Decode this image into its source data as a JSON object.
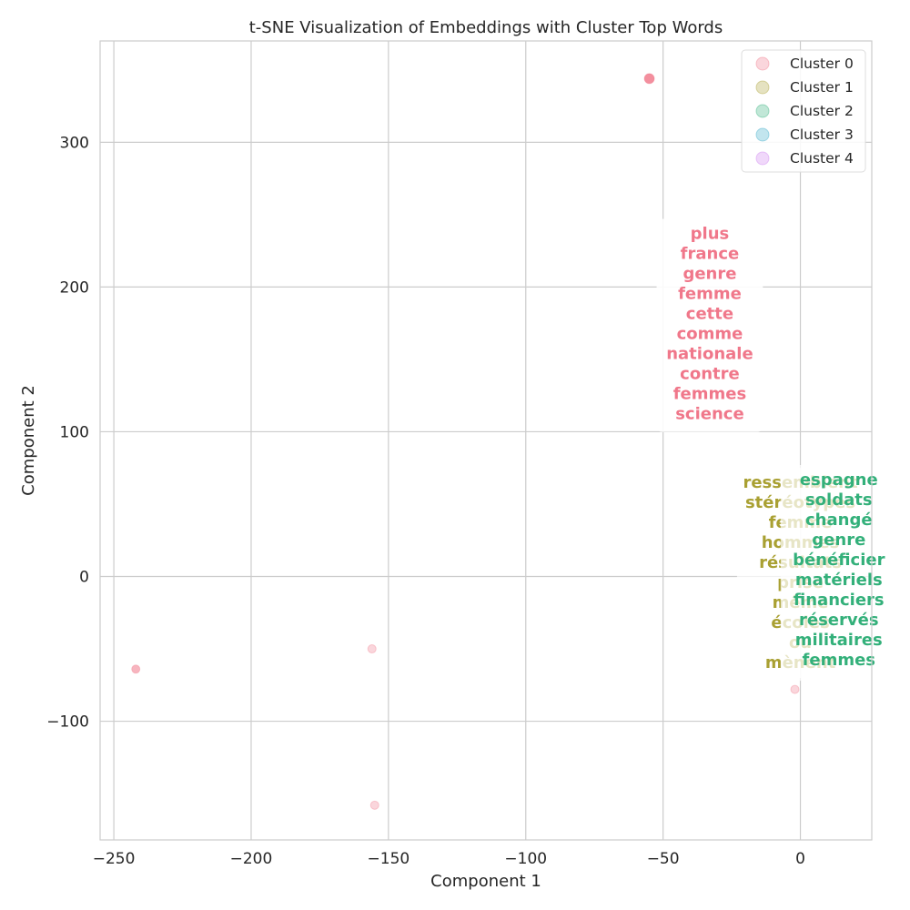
{
  "chart_data": {
    "type": "scatter",
    "title": "t-SNE Visualization of Embeddings with Cluster Top Words",
    "xlabel": "Component 1",
    "ylabel": "Component 2",
    "xlim": [
      -255,
      26
    ],
    "ylim": [
      -182,
      370
    ],
    "xticks": [
      -250,
      -200,
      -150,
      -100,
      -50,
      0
    ],
    "yticks": [
      -100,
      0,
      100,
      200,
      300
    ],
    "tick_labels_x": [
      "−250",
      "−200",
      "−150",
      "−100",
      "−50",
      "0"
    ],
    "tick_labels_y": [
      "−100",
      "0",
      "100",
      "200",
      "300"
    ],
    "grid": true,
    "legend_position": "top-right",
    "series": [
      {
        "name": "Cluster 0",
        "color": "#f0778a",
        "points": [
          [
            -55,
            344
          ],
          [
            -242,
            -64
          ],
          [
            -156,
            -50
          ],
          [
            -155,
            -158
          ],
          [
            -2,
            -78
          ]
        ]
      },
      {
        "name": "Cluster 1",
        "color": "#a9a032",
        "points": []
      },
      {
        "name": "Cluster 2",
        "color": "#33b07a",
        "points": []
      },
      {
        "name": "Cluster 3",
        "color": "#36a9c8",
        "points": []
      },
      {
        "name": "Cluster 4",
        "color": "#cc7ff0",
        "points": []
      }
    ],
    "annotations": [
      {
        "cluster": "Cluster 0",
        "x": -33,
        "y": 242,
        "color": "#f0778a",
        "words": [
          "plus",
          "france",
          "genre",
          "femme",
          "cette",
          "comme",
          "nationale",
          "contre",
          "femmes",
          "science"
        ]
      },
      {
        "cluster": "Cluster 1",
        "x": 0,
        "y": 70,
        "color": "#a9a032",
        "words": [
          "ressemblent",
          "stéréotypes",
          "femme",
          "hommes",
          "résultats",
          "prise",
          "même",
          "écoles",
          "ou",
          "mènent"
        ]
      },
      {
        "cluster": "Cluster 2",
        "x": 14,
        "y": 72,
        "color": "#33b07a",
        "words": [
          "espagne",
          "soldats",
          "changé",
          "genre",
          "bénéficier",
          "matériels",
          "financiers",
          "réservés",
          "militaires",
          "femmes"
        ]
      }
    ]
  }
}
